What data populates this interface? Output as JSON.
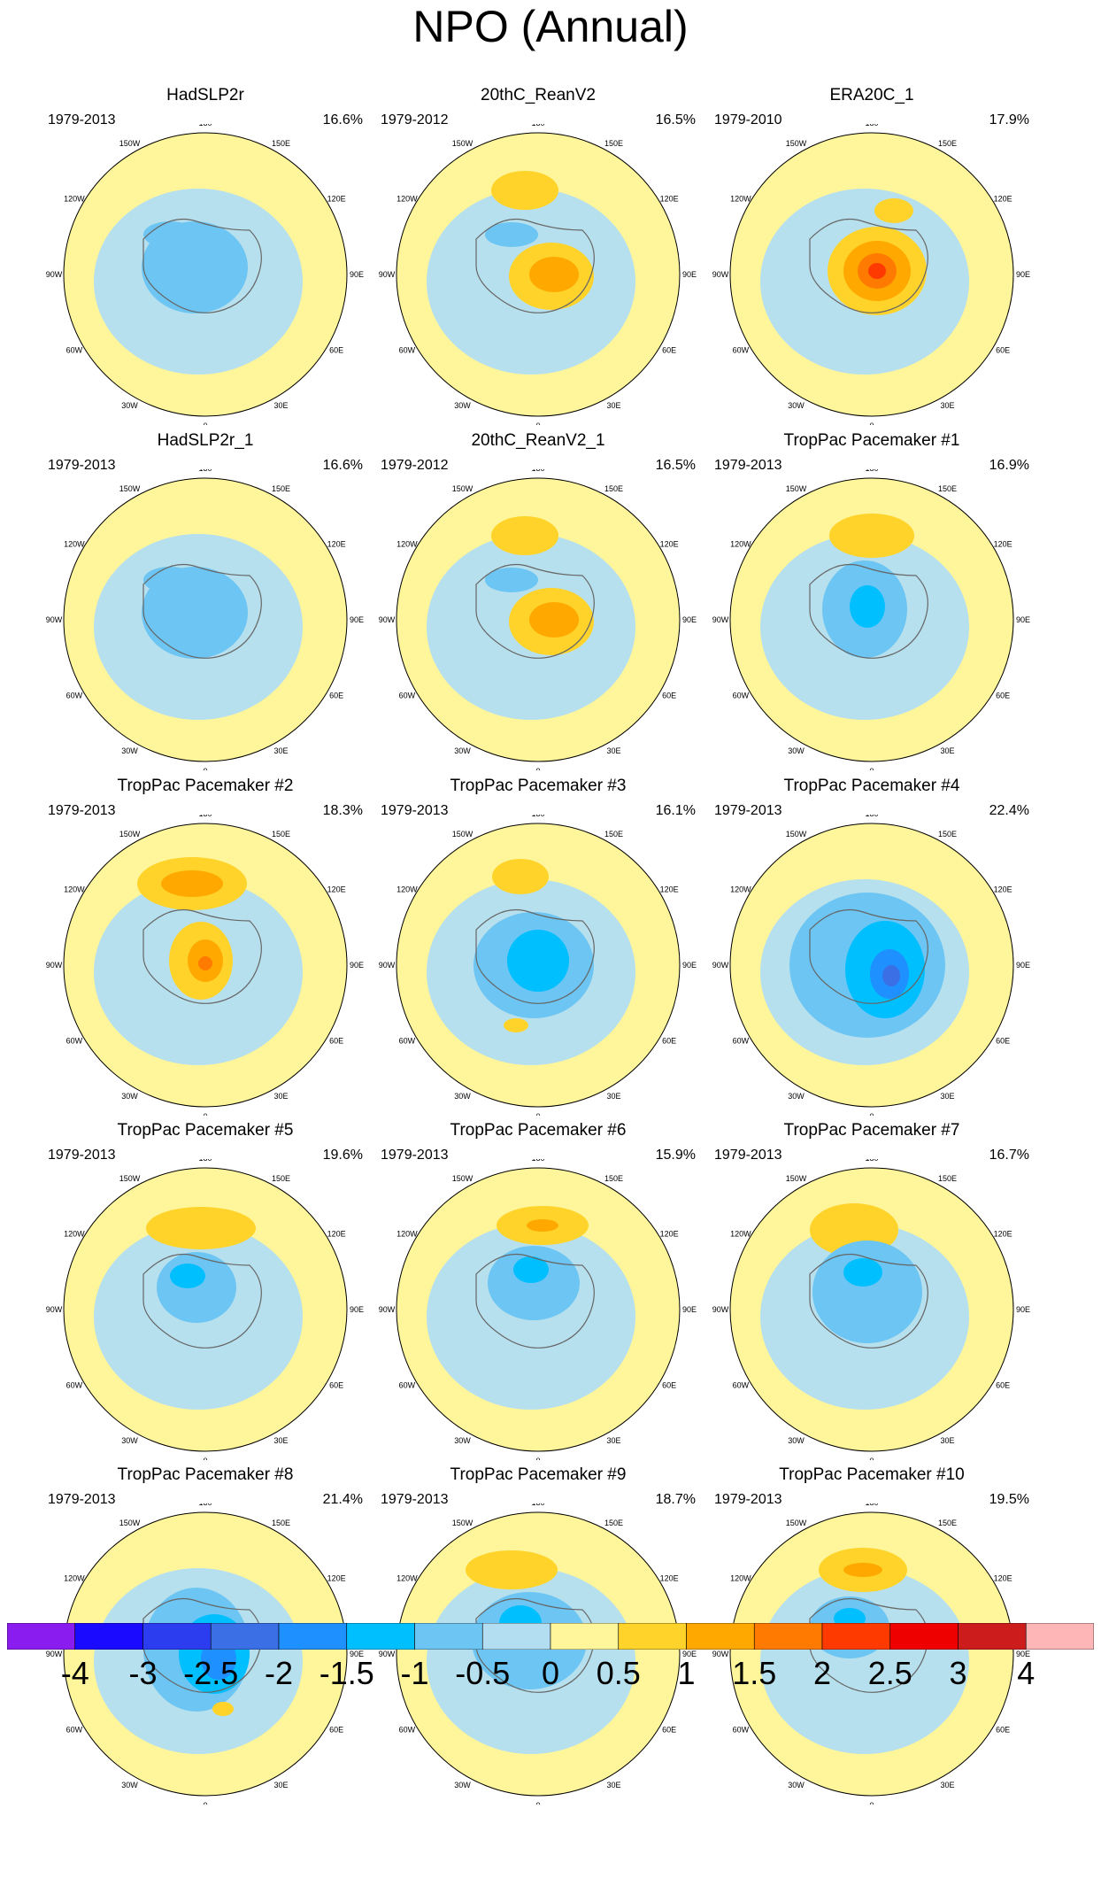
{
  "figure": {
    "title": "NPO (Annual)"
  },
  "longitude_labels": [
    "180",
    "150E",
    "120E",
    "90E",
    "60E",
    "30E",
    "0",
    "30W",
    "60W",
    "90W",
    "120W",
    "150W"
  ],
  "panels": [
    {
      "title": "HadSLP2r",
      "years": "1979-2013",
      "pct": "16.6%"
    },
    {
      "title": "20thC_ReanV2",
      "years": "1979-2012",
      "pct": "16.5%"
    },
    {
      "title": "ERA20C_1",
      "years": "1979-2010",
      "pct": "17.9%"
    },
    {
      "title": "HadSLP2r_1",
      "years": "1979-2013",
      "pct": "16.6%"
    },
    {
      "title": "20thC_ReanV2_1",
      "years": "1979-2012",
      "pct": "16.5%"
    },
    {
      "title": "TropPac Pacemaker #1",
      "years": "1979-2013",
      "pct": "16.9%"
    },
    {
      "title": "TropPac Pacemaker #2",
      "years": "1979-2013",
      "pct": "18.3%"
    },
    {
      "title": "TropPac Pacemaker #3",
      "years": "1979-2013",
      "pct": "16.1%"
    },
    {
      "title": "TropPac Pacemaker #4",
      "years": "1979-2013",
      "pct": "22.4%"
    },
    {
      "title": "TropPac Pacemaker #5",
      "years": "1979-2013",
      "pct": "19.6%"
    },
    {
      "title": "TropPac Pacemaker #6",
      "years": "1979-2013",
      "pct": "15.9%"
    },
    {
      "title": "TropPac Pacemaker #7",
      "years": "1979-2013",
      "pct": "16.7%"
    },
    {
      "title": "TropPac Pacemaker #8",
      "years": "1979-2013",
      "pct": "21.4%"
    },
    {
      "title": "TropPac Pacemaker #9",
      "years": "1979-2013",
      "pct": "18.7%"
    },
    {
      "title": "TropPac Pacemaker #10",
      "years": "1979-2013",
      "pct": "19.5%"
    }
  ],
  "colorbar": {
    "colors": [
      "#8a1cf0",
      "#1a0aff",
      "#2c3df0",
      "#3a6fe6",
      "#1e90ff",
      "#00bfff",
      "#6cc5f2",
      "#b3def2",
      "#fff59a",
      "#ffd32a",
      "#ffa800",
      "#ff7a00",
      "#ff3a00",
      "#ee0000",
      "#cc1c1c",
      "#ffb6b6"
    ],
    "labels": [
      "-4",
      "-3",
      "-2.5",
      "-2",
      "-1.5",
      "-1",
      "-0.5",
      "0",
      "0.5",
      "1",
      "1.5",
      "2",
      "2.5",
      "3",
      "4"
    ]
  }
}
